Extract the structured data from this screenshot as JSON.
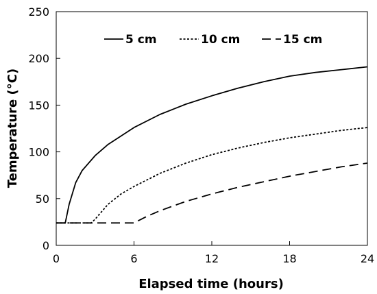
{
  "chart_data": {
    "type": "line",
    "title": "",
    "xlabel": "Elapsed time (hours)",
    "ylabel": "Temperature (°C)",
    "xlim": [
      0,
      24
    ],
    "ylim": [
      0,
      250
    ],
    "xticks": [
      0,
      6,
      12,
      18,
      24
    ],
    "yticks": [
      0,
      50,
      100,
      150,
      200,
      250
    ],
    "grid": false,
    "legend_position": "top",
    "series": [
      {
        "name": "5 cm",
        "line_style": "solid",
        "x": [
          0,
          0.7,
          1,
          1.5,
          2,
          3,
          4,
          6,
          8,
          10,
          12,
          14,
          16,
          18,
          20,
          22,
          24
        ],
        "y": [
          24,
          24,
          44,
          67,
          80,
          96,
          108,
          126,
          140,
          151,
          160,
          168,
          175,
          181,
          185,
          188,
          191
        ]
      },
      {
        "name": "10 cm",
        "line_style": "dotted",
        "x": [
          0,
          2.7,
          3,
          4,
          5,
          6,
          8,
          10,
          12,
          14,
          16,
          18,
          20,
          22,
          24
        ],
        "y": [
          24,
          24,
          28,
          44,
          55,
          63,
          77,
          88,
          97,
          104,
          110,
          115,
          119,
          123,
          126
        ]
      },
      {
        "name": "15 cm",
        "line_style": "dashed",
        "x": [
          0,
          6,
          7,
          8,
          10,
          12,
          14,
          16,
          18,
          20,
          22,
          24
        ],
        "y": [
          24,
          24,
          31,
          37,
          47,
          55,
          62,
          68,
          74,
          79,
          84,
          88
        ]
      }
    ]
  }
}
